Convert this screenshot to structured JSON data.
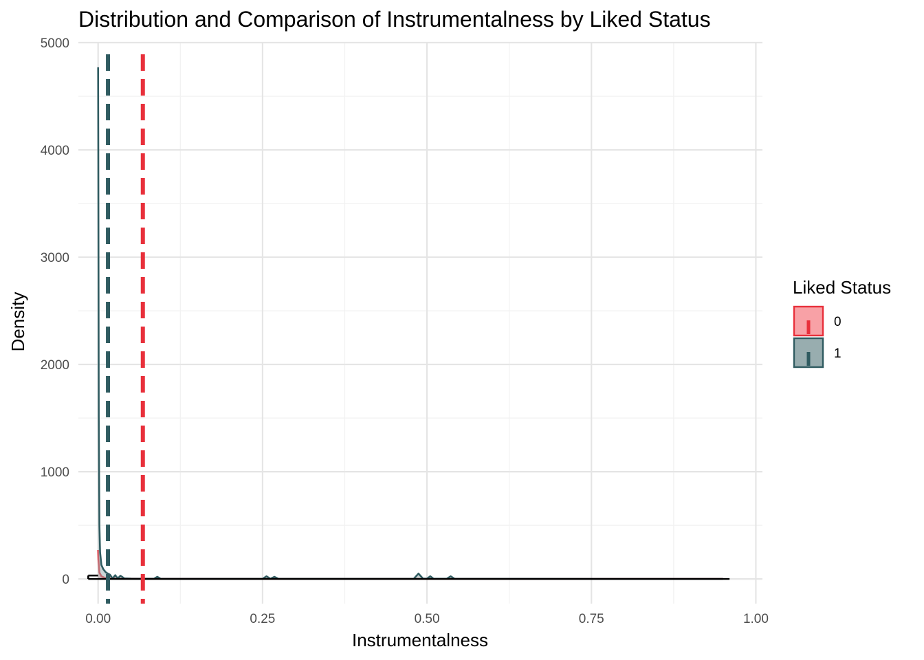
{
  "chart_data": {
    "type": "area",
    "title": "Distribution and Comparison of Instrumentalness by Liked Status",
    "xlabel": "Instrumentalness",
    "ylabel": "Density",
    "xlim": [
      -0.03,
      1.01
    ],
    "ylim": [
      -230,
      5000
    ],
    "x_ticks": [
      0.0,
      0.25,
      0.5,
      0.75,
      1.0
    ],
    "x_tick_labels": [
      "0.00",
      "0.25",
      "0.50",
      "0.75",
      "1.00"
    ],
    "y_ticks": [
      0,
      1000,
      2000,
      3000,
      4000,
      5000
    ],
    "y_tick_labels": [
      "0",
      "1000",
      "2000",
      "3000",
      "4000",
      "5000"
    ],
    "grid": true,
    "legend": {
      "title": "Liked Status",
      "position": "right",
      "entries": [
        {
          "label": "0",
          "fill": "#f8a1a6",
          "stroke": "#e8303b"
        },
        {
          "label": "1",
          "fill": "#98adaf",
          "stroke": "#2f5b60"
        }
      ]
    },
    "series": [
      {
        "label": "0",
        "color": "#e8303b",
        "mean": 0.068,
        "x": [
          0.0,
          0.0005,
          0.002,
          0.005,
          0.01,
          0.02,
          0.03,
          0.05,
          0.1,
          0.3,
          0.5,
          0.7,
          0.95
        ],
        "y": [
          270,
          180,
          60,
          25,
          10,
          6,
          4,
          3,
          2,
          1,
          1,
          0.5,
          0
        ]
      },
      {
        "label": "1",
        "color": "#2f5b60",
        "mean": 0.015,
        "x": [
          0.0,
          0.0003,
          0.001,
          0.002,
          0.003,
          0.005,
          0.008,
          0.012,
          0.018,
          0.022,
          0.026,
          0.03,
          0.034,
          0.04,
          0.05,
          0.07,
          0.085,
          0.09,
          0.095,
          0.12,
          0.2,
          0.25,
          0.256,
          0.262,
          0.268,
          0.274,
          0.3,
          0.4,
          0.48,
          0.487,
          0.494,
          0.5,
          0.505,
          0.51,
          0.53,
          0.536,
          0.542,
          0.6,
          0.8,
          0.95
        ],
        "y": [
          4770,
          4000,
          1500,
          500,
          250,
          130,
          90,
          60,
          40,
          5,
          35,
          5,
          30,
          5,
          3,
          2,
          2,
          20,
          2,
          1,
          1,
          1,
          25,
          2,
          20,
          2,
          1,
          1,
          2,
          50,
          3,
          3,
          25,
          2,
          2,
          25,
          2,
          1,
          0.5,
          0
        ]
      }
    ],
    "rug_segment": {
      "x": [
        -0.015,
        0.96
      ]
    }
  }
}
